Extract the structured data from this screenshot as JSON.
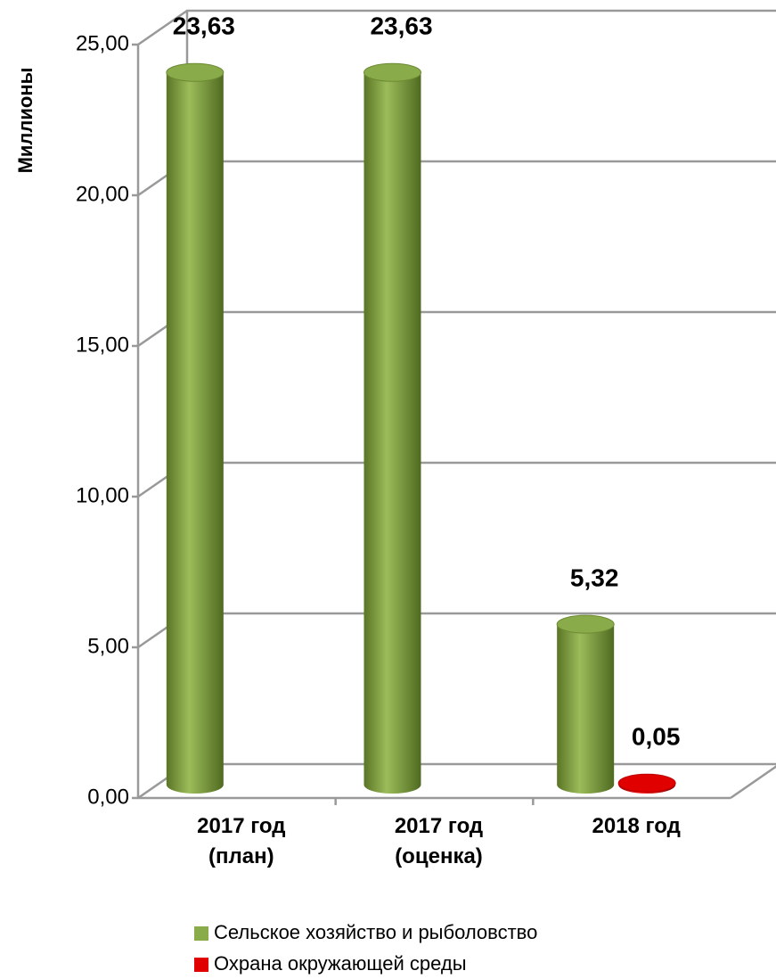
{
  "chart_data": {
    "type": "bar3d",
    "ylabel": "Миллионы",
    "categories": [
      "2017 год (план)",
      "2017 год (оценка)",
      "2018 год"
    ],
    "series": [
      {
        "name": "Сельское хозяйство и рыболовство",
        "color": "#8aab4a",
        "values": [
          23.63,
          23.63,
          5.32
        ],
        "value_labels": [
          "23,63",
          "23,63",
          "5,32"
        ]
      },
      {
        "name": "Охрана окружающей среды",
        "color": "#e00000",
        "values": [
          null,
          null,
          0.05
        ],
        "value_labels": [
          null,
          null,
          "0,05"
        ]
      }
    ],
    "ylim": [
      0,
      25
    ],
    "yticks": [
      {
        "value": 0,
        "label": "0,00"
      },
      {
        "value": 5,
        "label": "5,00"
      },
      {
        "value": 10,
        "label": "10,00"
      },
      {
        "value": 15,
        "label": "15,00"
      },
      {
        "value": 20,
        "label": "20,00"
      },
      {
        "value": 25,
        "label": "25,00"
      }
    ],
    "grid": true
  }
}
